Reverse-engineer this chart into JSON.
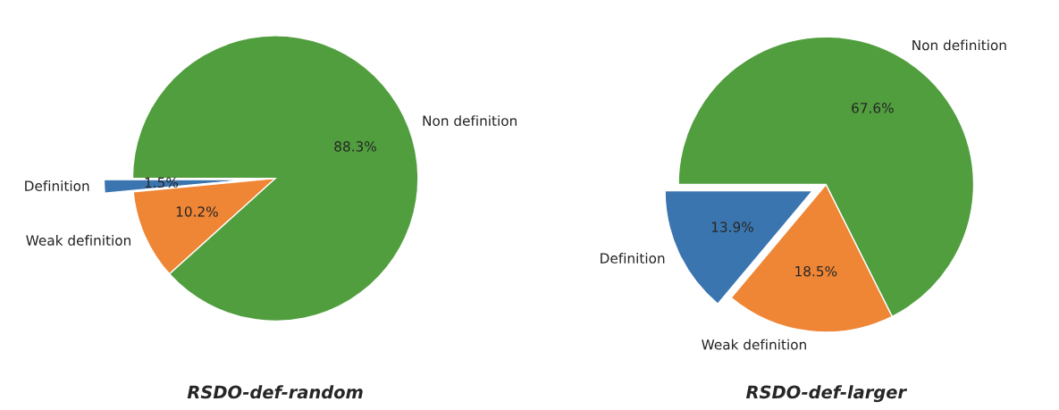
{
  "chart_data": [
    {
      "type": "pie",
      "title": "RSDO-def-random",
      "categories": [
        "Definition",
        "Weak definition",
        "Non definition"
      ],
      "values": [
        1.5,
        10.2,
        88.3
      ],
      "colors": [
        "#3a75af",
        "#ef8636",
        "#519e3e"
      ],
      "value_labels": [
        "1.5%",
        "10.2%",
        "88.3%"
      ]
    },
    {
      "type": "pie",
      "title": "RSDO-def-larger",
      "categories": [
        "Definition",
        "Weak definition",
        "Non definition"
      ],
      "values": [
        13.9,
        18.5,
        67.6
      ],
      "colors": [
        "#3a75af",
        "#ef8636",
        "#519e3e"
      ],
      "value_labels": [
        "13.9%",
        "18.5%",
        "67.6%"
      ]
    }
  ]
}
